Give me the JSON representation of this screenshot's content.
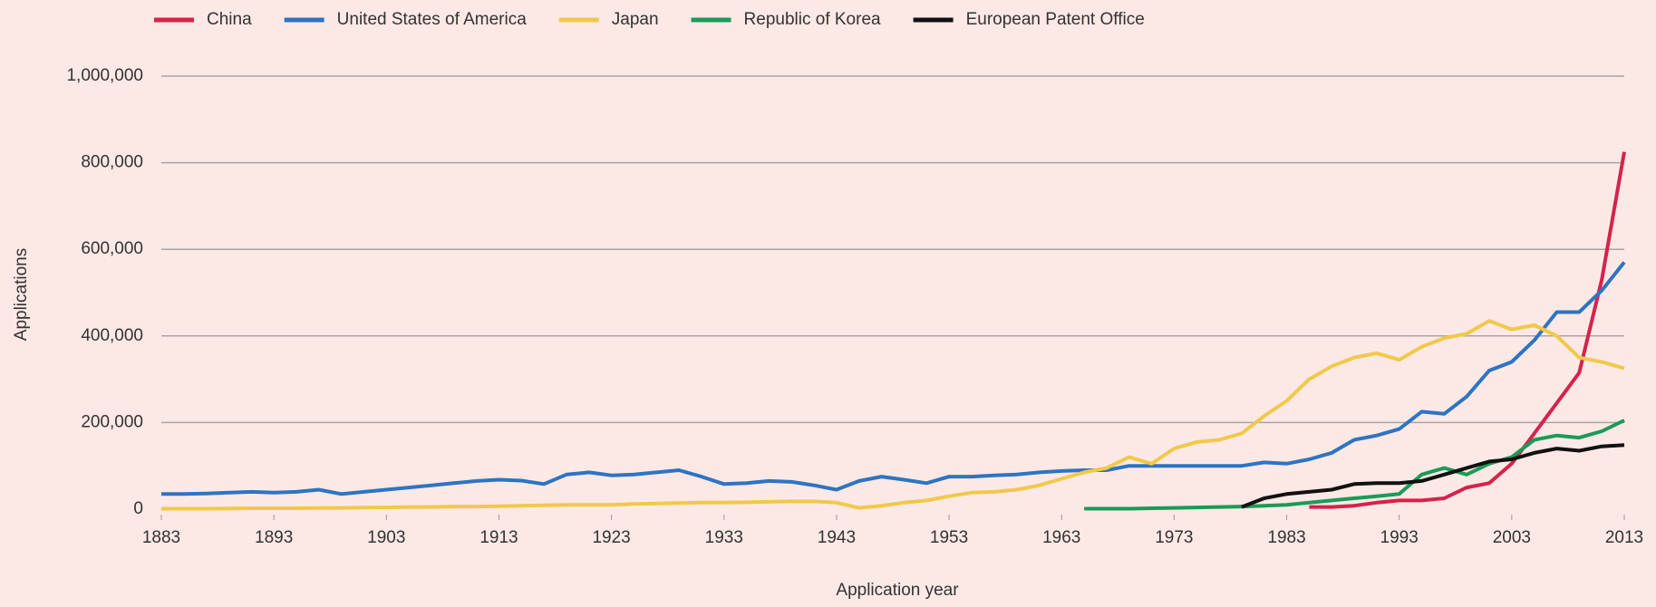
{
  "chart_data": {
    "type": "line",
    "x_label": "Application year",
    "y_label": "Applications",
    "x": [
      1883,
      1885,
      1887,
      1889,
      1891,
      1893,
      1895,
      1897,
      1899,
      1901,
      1903,
      1905,
      1907,
      1909,
      1911,
      1913,
      1915,
      1917,
      1919,
      1921,
      1923,
      1925,
      1927,
      1929,
      1931,
      1933,
      1935,
      1937,
      1939,
      1941,
      1943,
      1945,
      1947,
      1949,
      1951,
      1953,
      1955,
      1957,
      1959,
      1961,
      1963,
      1965,
      1967,
      1969,
      1971,
      1973,
      1975,
      1977,
      1979,
      1981,
      1983,
      1985,
      1987,
      1989,
      1991,
      1993,
      1995,
      1997,
      1999,
      2001,
      2003,
      2005,
      2007,
      2009,
      2011,
      2013
    ],
    "xlim": [
      1883,
      2013
    ],
    "xticks": [
      1883,
      1893,
      1903,
      1913,
      1923,
      1933,
      1943,
      1953,
      1963,
      1973,
      1983,
      1993,
      2003,
      2013
    ],
    "ylim": [
      0,
      1000000
    ],
    "yticks": [
      0,
      {
        "value": 200000,
        "label": "200,000"
      },
      {
        "value": 400000,
        "label": "400,000"
      },
      {
        "value": 600000,
        "label": "600,000"
      },
      {
        "value": 800000,
        "label": "800,000"
      },
      {
        "value": 1000000,
        "label": "1,000,000"
      }
    ],
    "grid": true,
    "legend": "top-left",
    "series": [
      {
        "name": "China",
        "color": "#d6224a",
        "values": [
          null,
          null,
          null,
          null,
          null,
          null,
          null,
          null,
          null,
          null,
          null,
          null,
          null,
          null,
          null,
          null,
          null,
          null,
          null,
          null,
          null,
          null,
          null,
          null,
          null,
          null,
          null,
          null,
          null,
          null,
          null,
          null,
          null,
          null,
          null,
          null,
          null,
          null,
          null,
          null,
          null,
          null,
          null,
          null,
          null,
          null,
          null,
          null,
          null,
          null,
          null,
          5000,
          5000,
          8000,
          15000,
          20000,
          20000,
          25000,
          50000,
          60000,
          105000,
          175000,
          245000,
          315000,
          530000,
          825000
        ]
      },
      {
        "name": "United States of America",
        "color": "#2e74c2",
        "values": [
          35000,
          35000,
          36000,
          38000,
          40000,
          38000,
          40000,
          45000,
          35000,
          40000,
          45000,
          50000,
          55000,
          60000,
          65000,
          68000,
          66000,
          58000,
          80000,
          85000,
          78000,
          80000,
          85000,
          90000,
          75000,
          58000,
          60000,
          65000,
          63000,
          55000,
          45000,
          65000,
          75000,
          68000,
          60000,
          75000,
          75000,
          78000,
          80000,
          85000,
          88000,
          90000,
          90000,
          100000,
          100000,
          100000,
          100000,
          100000,
          100000,
          108000,
          105000,
          115000,
          130000,
          160000,
          170000,
          185000,
          225000,
          220000,
          260000,
          320000,
          340000,
          390000,
          455000,
          455000,
          505000,
          570000
        ]
      },
      {
        "name": "Japan",
        "color": "#f0c94a",
        "values": [
          1000,
          1000,
          1000,
          1500,
          2000,
          2000,
          2000,
          2500,
          3000,
          3500,
          4000,
          5000,
          5000,
          6000,
          6000,
          7000,
          8000,
          9000,
          10000,
          10000,
          10000,
          12000,
          13000,
          14000,
          15000,
          15000,
          16000,
          17000,
          18000,
          18000,
          15000,
          3000,
          8000,
          15000,
          20000,
          30000,
          38000,
          40000,
          45000,
          55000,
          70000,
          85000,
          95000,
          120000,
          105000,
          140000,
          155000,
          160000,
          175000,
          215000,
          250000,
          300000,
          330000,
          350000,
          360000,
          345000,
          375000,
          395000,
          405000,
          435000,
          415000,
          425000,
          400000,
          350000,
          340000,
          325000
        ]
      },
      {
        "name": "Republic of Korea",
        "color": "#1b9a58",
        "values": [
          null,
          null,
          null,
          null,
          null,
          null,
          null,
          null,
          null,
          null,
          null,
          null,
          null,
          null,
          null,
          null,
          null,
          null,
          null,
          null,
          null,
          null,
          null,
          null,
          null,
          null,
          null,
          null,
          null,
          null,
          null,
          null,
          null,
          null,
          null,
          null,
          null,
          null,
          null,
          null,
          null,
          1000,
          1000,
          1000,
          2000,
          3000,
          4000,
          5000,
          6000,
          8000,
          10000,
          15000,
          20000,
          25000,
          30000,
          35000,
          80000,
          95000,
          80000,
          105000,
          120000,
          160000,
          170000,
          165000,
          180000,
          205000
        ]
      },
      {
        "name": "European Patent Office",
        "color": "#111111",
        "values": [
          null,
          null,
          null,
          null,
          null,
          null,
          null,
          null,
          null,
          null,
          null,
          null,
          null,
          null,
          null,
          null,
          null,
          null,
          null,
          null,
          null,
          null,
          null,
          null,
          null,
          null,
          null,
          null,
          null,
          null,
          null,
          null,
          null,
          null,
          null,
          null,
          null,
          null,
          null,
          null,
          null,
          null,
          null,
          null,
          null,
          null,
          null,
          null,
          5000,
          25000,
          35000,
          40000,
          45000,
          58000,
          60000,
          60000,
          65000,
          80000,
          95000,
          110000,
          115000,
          130000,
          140000,
          135000,
          145000,
          148000
        ]
      }
    ]
  }
}
